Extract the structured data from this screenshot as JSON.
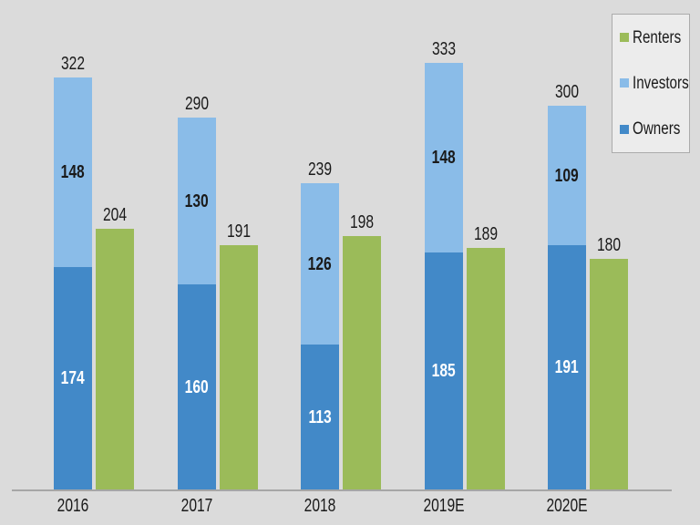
{
  "chart_data": {
    "type": "bar",
    "variant": "stacked-column-plus-clustered-column",
    "categories": [
      "2016",
      "2017",
      "2018",
      "2019E",
      "2020E"
    ],
    "series": [
      {
        "name": "Owners",
        "color": "#4289C8",
        "label_color": "#FFFFFF",
        "values": [
          174,
          160,
          113,
          185,
          191
        ]
      },
      {
        "name": "Investors",
        "color": "#8ABCE8",
        "label_color": "#1A1A1A",
        "values": [
          148,
          130,
          126,
          148,
          109
        ]
      },
      {
        "name": "Renters",
        "color": "#9BBB59",
        "values": [
          204,
          191,
          198,
          189,
          180
        ]
      }
    ],
    "stack_totals": [
      322,
      290,
      239,
      333,
      300
    ],
    "legend": {
      "position": "top-right",
      "entries": [
        {
          "label": "Renters",
          "color": "#9BBB59"
        },
        {
          "label": "Investors",
          "color": "#8ABCE8"
        },
        {
          "label": "Owners",
          "color": "#4289C8"
        }
      ]
    },
    "axes": {
      "x_labels_shown": true,
      "y_axis_shown": false,
      "gridlines": false
    },
    "ylim": [
      0,
      360
    ],
    "title": ""
  },
  "colors": {
    "background": "#DBDBDB",
    "legend_background": "#ECECEC",
    "legend_border": "#ABABAB",
    "axis_line": "#A6A6A6",
    "label_text": "#1A1A1A"
  }
}
